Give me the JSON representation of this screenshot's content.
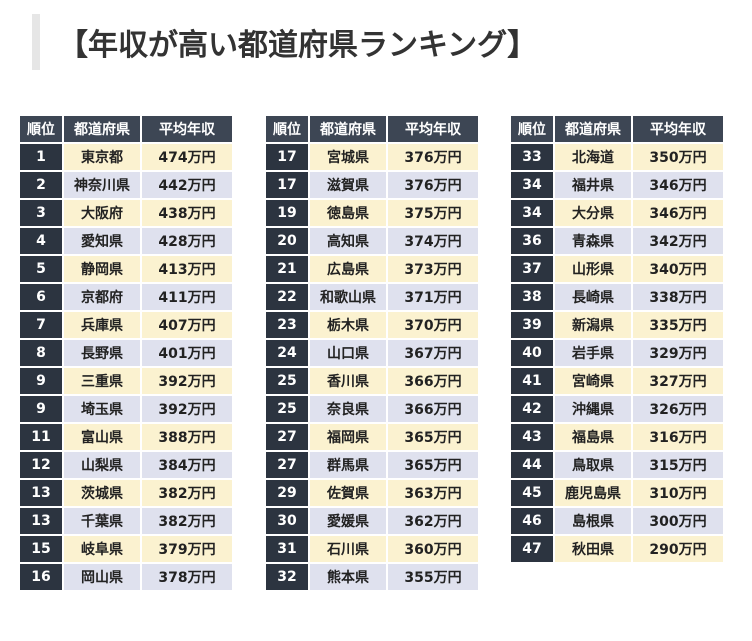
{
  "title": "【年収が高い都道府県ランキング】",
  "headers": {
    "rank": "順位",
    "prefecture": "都道府県",
    "income": "平均年収"
  },
  "tables": [
    [
      {
        "rank": "1",
        "pref": "東京都",
        "income": "474万円"
      },
      {
        "rank": "2",
        "pref": "神奈川県",
        "income": "442万円"
      },
      {
        "rank": "3",
        "pref": "大阪府",
        "income": "438万円"
      },
      {
        "rank": "4",
        "pref": "愛知県",
        "income": "428万円"
      },
      {
        "rank": "5",
        "pref": "静岡県",
        "income": "413万円"
      },
      {
        "rank": "6",
        "pref": "京都府",
        "income": "411万円"
      },
      {
        "rank": "7",
        "pref": "兵庫県",
        "income": "407万円"
      },
      {
        "rank": "8",
        "pref": "長野県",
        "income": "401万円"
      },
      {
        "rank": "9",
        "pref": "三重県",
        "income": "392万円"
      },
      {
        "rank": "9",
        "pref": "埼玉県",
        "income": "392万円"
      },
      {
        "rank": "11",
        "pref": "富山県",
        "income": "388万円"
      },
      {
        "rank": "12",
        "pref": "山梨県",
        "income": "384万円"
      },
      {
        "rank": "13",
        "pref": "茨城県",
        "income": "382万円"
      },
      {
        "rank": "13",
        "pref": "千葉県",
        "income": "382万円"
      },
      {
        "rank": "15",
        "pref": "岐阜県",
        "income": "379万円"
      },
      {
        "rank": "16",
        "pref": "岡山県",
        "income": "378万円"
      }
    ],
    [
      {
        "rank": "17",
        "pref": "宮城県",
        "income": "376万円"
      },
      {
        "rank": "17",
        "pref": "滋賀県",
        "income": "376万円"
      },
      {
        "rank": "19",
        "pref": "徳島県",
        "income": "375万円"
      },
      {
        "rank": "20",
        "pref": "高知県",
        "income": "374万円"
      },
      {
        "rank": "21",
        "pref": "広島県",
        "income": "373万円"
      },
      {
        "rank": "22",
        "pref": "和歌山県",
        "income": "371万円"
      },
      {
        "rank": "23",
        "pref": "栃木県",
        "income": "370万円"
      },
      {
        "rank": "24",
        "pref": "山口県",
        "income": "367万円"
      },
      {
        "rank": "25",
        "pref": "香川県",
        "income": "366万円"
      },
      {
        "rank": "25",
        "pref": "奈良県",
        "income": "366万円"
      },
      {
        "rank": "27",
        "pref": "福岡県",
        "income": "365万円"
      },
      {
        "rank": "27",
        "pref": "群馬県",
        "income": "365万円"
      },
      {
        "rank": "29",
        "pref": "佐賀県",
        "income": "363万円"
      },
      {
        "rank": "30",
        "pref": "愛媛県",
        "income": "362万円"
      },
      {
        "rank": "31",
        "pref": "石川県",
        "income": "360万円"
      },
      {
        "rank": "32",
        "pref": "熊本県",
        "income": "355万円"
      }
    ],
    [
      {
        "rank": "33",
        "pref": "北海道",
        "income": "350万円"
      },
      {
        "rank": "34",
        "pref": "福井県",
        "income": "346万円"
      },
      {
        "rank": "34",
        "pref": "大分県",
        "income": "346万円"
      },
      {
        "rank": "36",
        "pref": "青森県",
        "income": "342万円"
      },
      {
        "rank": "37",
        "pref": "山形県",
        "income": "340万円"
      },
      {
        "rank": "38",
        "pref": "長崎県",
        "income": "338万円"
      },
      {
        "rank": "39",
        "pref": "新潟県",
        "income": "335万円"
      },
      {
        "rank": "40",
        "pref": "岩手県",
        "income": "329万円"
      },
      {
        "rank": "41",
        "pref": "宮崎県",
        "income": "327万円"
      },
      {
        "rank": "42",
        "pref": "沖縄県",
        "income": "326万円"
      },
      {
        "rank": "43",
        "pref": "福島県",
        "income": "316万円"
      },
      {
        "rank": "44",
        "pref": "鳥取県",
        "income": "315万円"
      },
      {
        "rank": "45",
        "pref": "鹿児島県",
        "income": "310万円"
      },
      {
        "rank": "46",
        "pref": "島根県",
        "income": "300万円"
      },
      {
        "rank": "47",
        "pref": "秋田県",
        "income": "290万円"
      }
    ]
  ]
}
